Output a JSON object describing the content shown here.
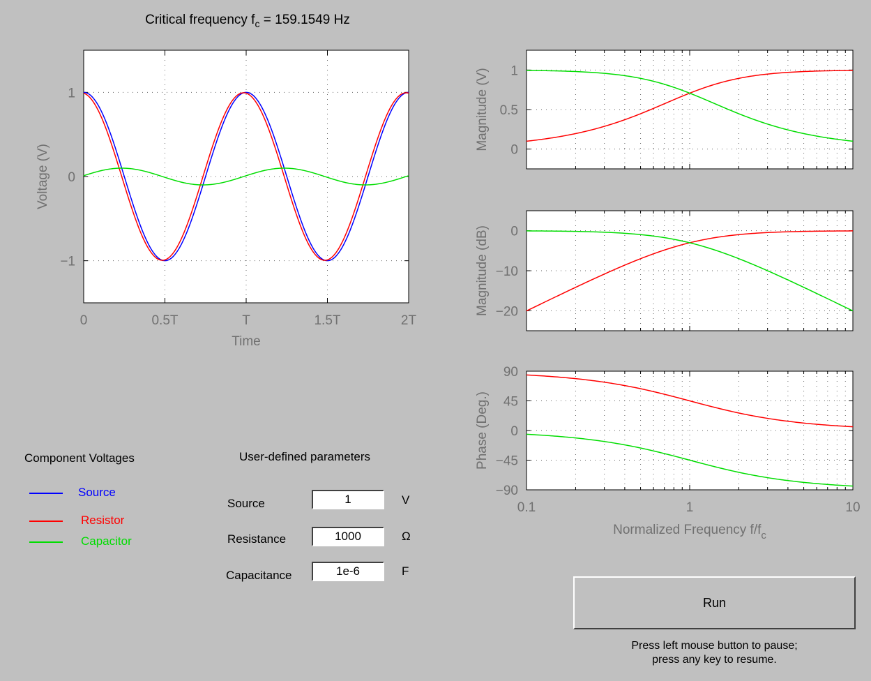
{
  "title": {
    "prefix": "Critical frequency f",
    "sub": "c",
    "suffix": " = 159.1549 Hz"
  },
  "colors": {
    "source": "#0000ff",
    "resistor": "#ff0000",
    "capacitor": "#00dd00",
    "axis_text": "#707070"
  },
  "legend": {
    "title": "Component Voltages",
    "items": [
      {
        "label": "Source",
        "color": "#0000ff"
      },
      {
        "label": "Resistor",
        "color": "#ff0000"
      },
      {
        "label": "Capacitor",
        "color": "#00dd00"
      }
    ]
  },
  "params": {
    "title": "User-defined parameters",
    "rows": [
      {
        "label": "Source",
        "value": "1",
        "unit": "V"
      },
      {
        "label": "Resistance",
        "value": "1000",
        "unit": "Ω"
      },
      {
        "label": "Capacitance",
        "value": "1e-6",
        "unit": "F"
      }
    ]
  },
  "run_button": {
    "label": "Run"
  },
  "hint": {
    "line1": "Press left mouse button to pause;",
    "line2": "press any key to resume."
  },
  "chart_data": [
    {
      "type": "line",
      "xlabel": "Time",
      "ylabel": "Voltage (V)",
      "xlim": [
        0,
        2
      ],
      "ylim": [
        -1.5,
        1.5
      ],
      "xticks": [
        0,
        0.5,
        1,
        1.5,
        2
      ],
      "xticklabels": [
        "0",
        "0.5T",
        "T",
        "1.5T",
        "2T"
      ],
      "yticks": [
        -1,
        0,
        1
      ],
      "yticklabels": [
        "−1",
        "0",
        "1"
      ],
      "grid": true,
      "series": [
        {
          "name": "Source",
          "color": "#0000ff",
          "amplitude": 1.0,
          "phase_deg": 0
        },
        {
          "name": "Resistor",
          "color": "#ff0000",
          "amplitude": 0.995,
          "phase_deg": 5.7
        },
        {
          "name": "Capacitor",
          "color": "#00dd00",
          "amplitude": 0.0995,
          "phase_deg": -84.3
        }
      ]
    },
    {
      "type": "line",
      "xlabel": "",
      "ylabel": "Magnitude (V)",
      "xscale": "log",
      "xlim": [
        0.1,
        10
      ],
      "ylim": [
        -0.25,
        1.25
      ],
      "yticks": [
        0,
        0.5,
        1
      ],
      "yticklabels": [
        "0",
        "0.5",
        "1"
      ],
      "grid": true,
      "series": [
        {
          "name": "Resistor",
          "color": "#ff0000",
          "x": [
            0.1,
            0.2,
            0.5,
            1,
            2,
            5,
            10
          ],
          "y": [
            0.0995,
            0.196,
            0.447,
            0.707,
            0.894,
            0.981,
            0.995
          ]
        },
        {
          "name": "Capacitor",
          "color": "#00dd00",
          "x": [
            0.1,
            0.2,
            0.5,
            1,
            2,
            5,
            10
          ],
          "y": [
            0.995,
            0.981,
            0.894,
            0.707,
            0.447,
            0.196,
            0.0995
          ]
        }
      ]
    },
    {
      "type": "line",
      "xlabel": "",
      "ylabel": "Magnitude (dB)",
      "xscale": "log",
      "xlim": [
        0.1,
        10
      ],
      "ylim": [
        -25,
        5
      ],
      "yticks": [
        -20,
        -10,
        0
      ],
      "yticklabels": [
        "−20",
        "−10",
        "0"
      ],
      "grid": true,
      "series": [
        {
          "name": "Resistor",
          "color": "#ff0000",
          "x": [
            0.1,
            0.2,
            0.5,
            1,
            2,
            5,
            10
          ],
          "y": [
            -20.0,
            -14.2,
            -7.0,
            -3.0,
            -1.0,
            -0.17,
            -0.04
          ]
        },
        {
          "name": "Capacitor",
          "color": "#00dd00",
          "x": [
            0.1,
            0.2,
            0.5,
            1,
            2,
            5,
            10
          ],
          "y": [
            -0.04,
            -0.17,
            -1.0,
            -3.0,
            -7.0,
            -14.2,
            -20.0
          ]
        }
      ]
    },
    {
      "type": "line",
      "xlabel": "Normalized Frequency f/f",
      "xlabel_sub": "c",
      "ylabel": "Phase (Deg.)",
      "xscale": "log",
      "xlim": [
        0.1,
        10
      ],
      "ylim": [
        -90,
        90
      ],
      "xticks": [
        0.1,
        1,
        10
      ],
      "xticklabels": [
        "0.1",
        "1",
        "10"
      ],
      "yticks": [
        -90,
        -45,
        0,
        45,
        90
      ],
      "yticklabels": [
        "−90",
        "−45",
        "0",
        "45",
        "90"
      ],
      "grid": true,
      "series": [
        {
          "name": "Resistor",
          "color": "#ff0000",
          "x": [
            0.1,
            0.2,
            0.5,
            1,
            2,
            5,
            10
          ],
          "y": [
            84.3,
            78.7,
            63.4,
            45,
            26.6,
            11.3,
            5.7
          ]
        },
        {
          "name": "Capacitor",
          "color": "#00dd00",
          "x": [
            0.1,
            0.2,
            0.5,
            1,
            2,
            5,
            10
          ],
          "y": [
            -5.7,
            -11.3,
            -26.6,
            -45,
            -63.4,
            -78.7,
            -84.3
          ]
        }
      ]
    }
  ]
}
